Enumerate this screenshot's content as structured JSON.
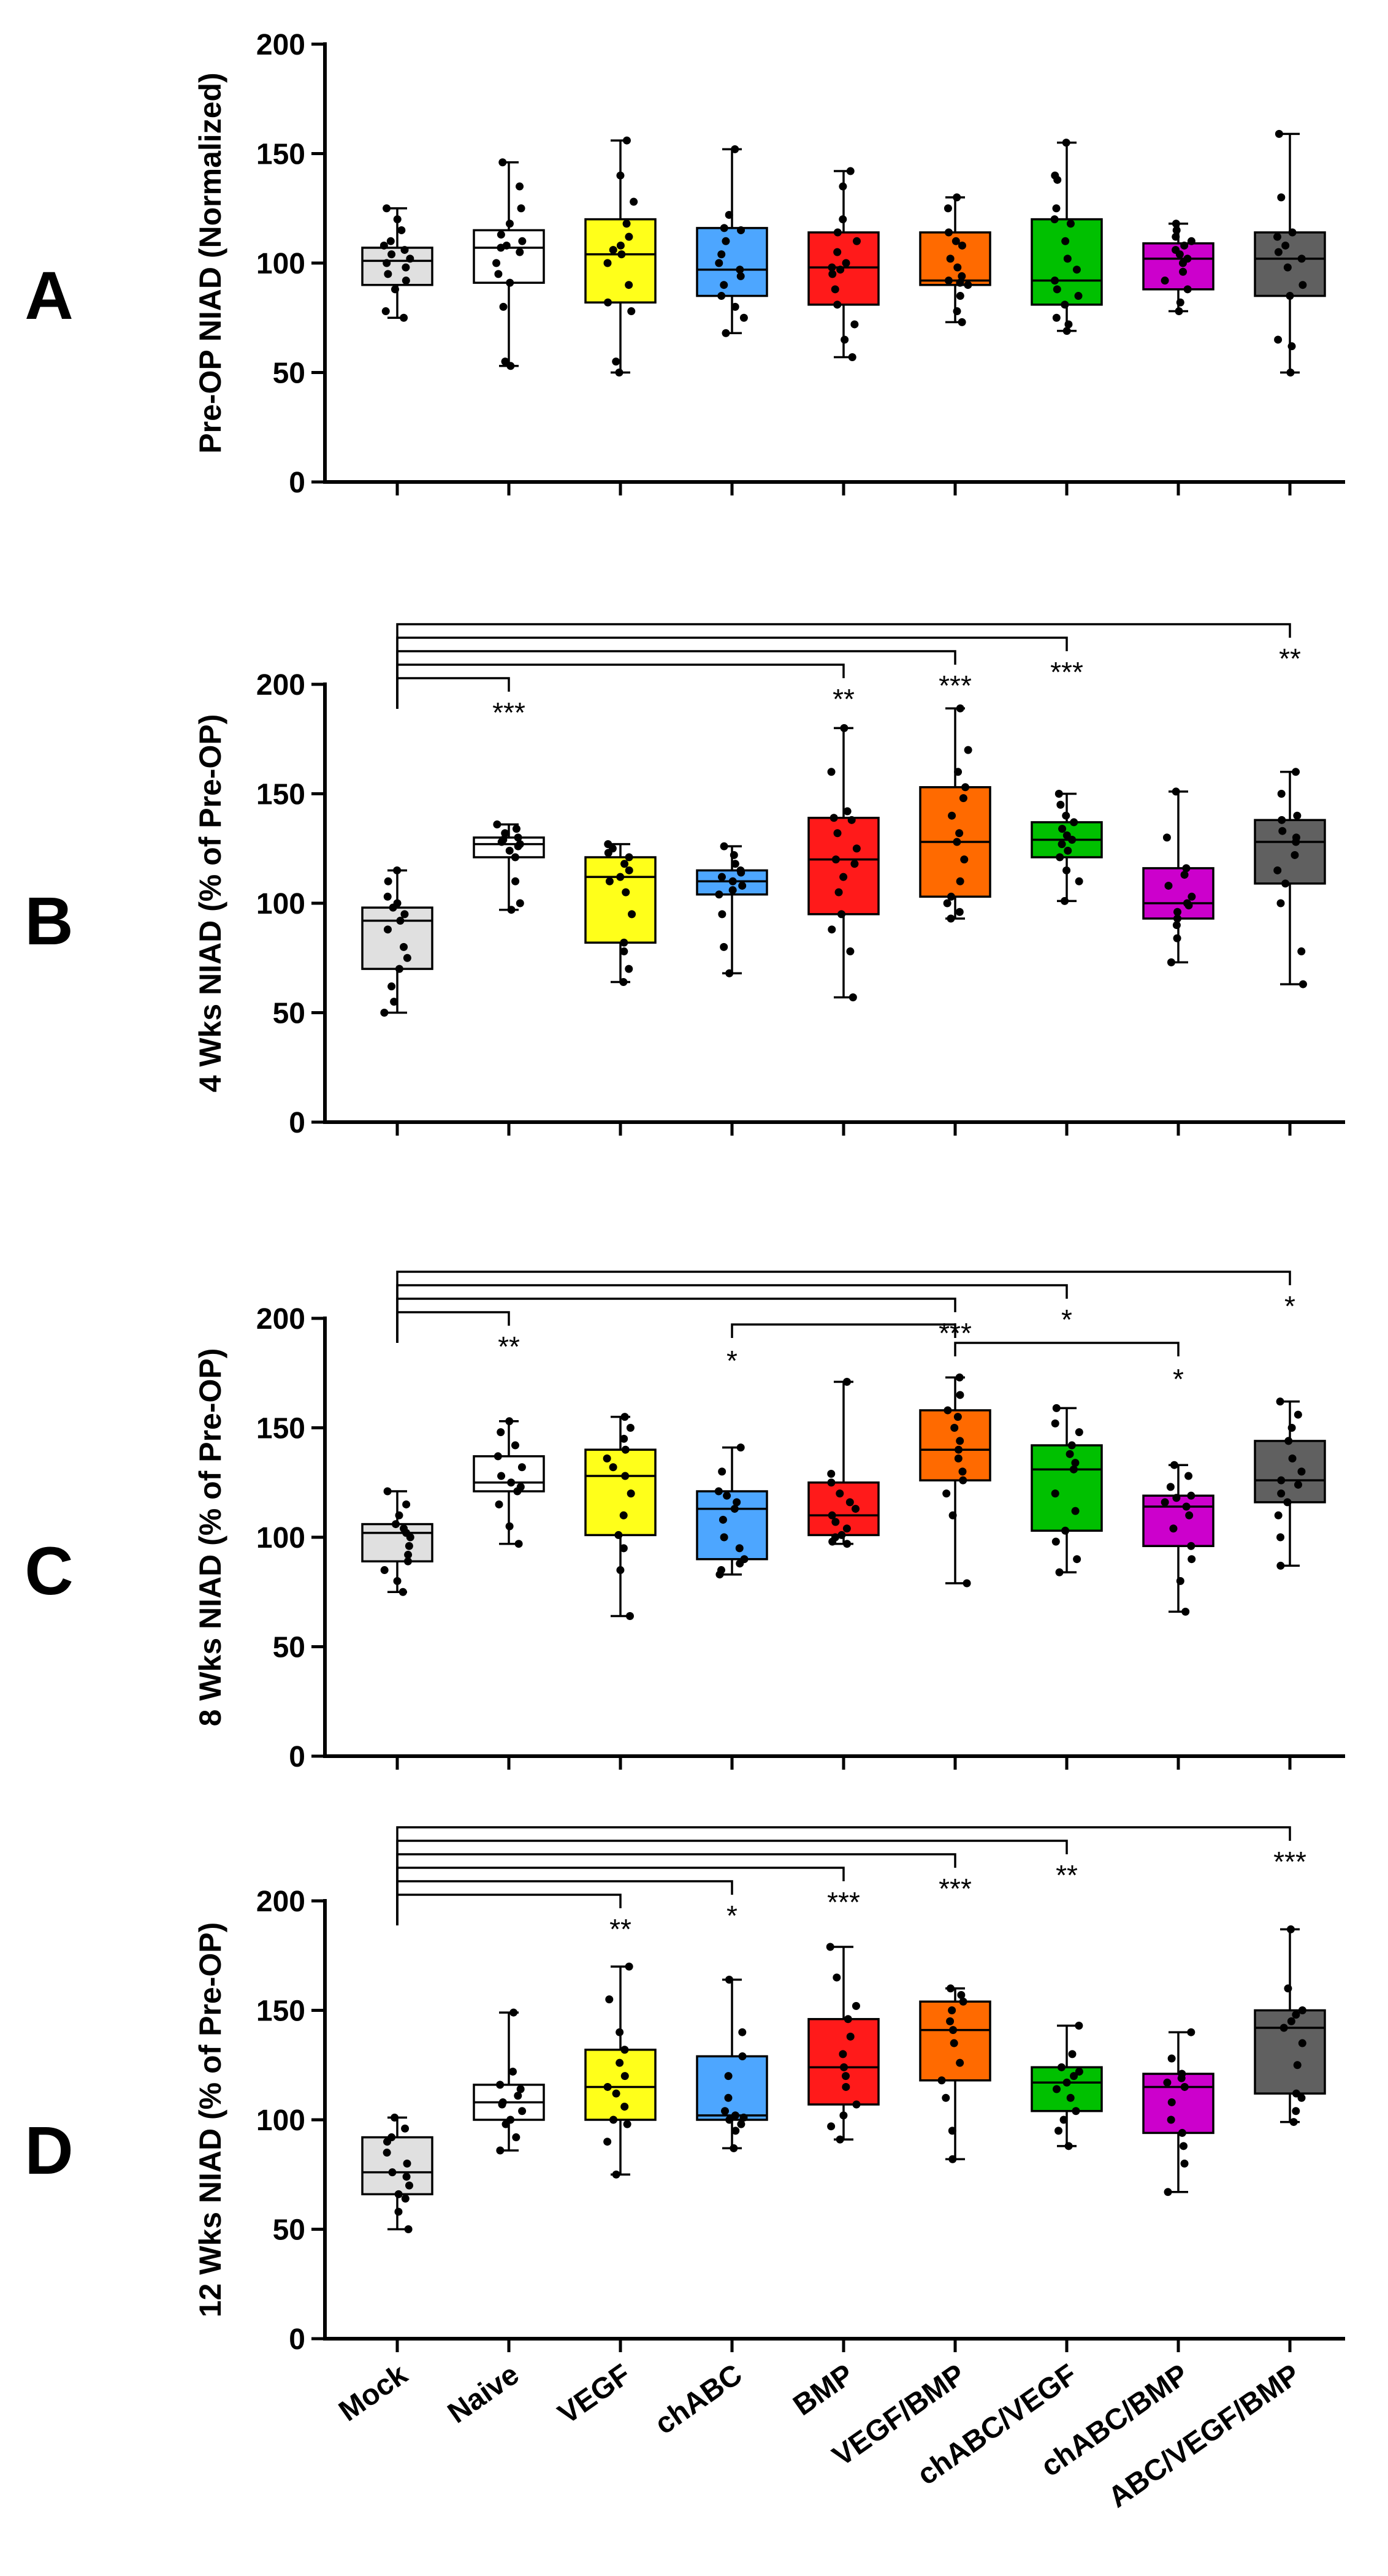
{
  "categories": [
    "Mock",
    "Naive",
    "VEGF",
    "chABC",
    "BMP",
    "VEGF/BMP",
    "chABC/VEGF",
    "chABC/BMP",
    "ABC/VEGF/BMP"
  ],
  "colors": [
    "#e0e0e0",
    "#ffffff",
    "#ffff1a",
    "#4da6ff",
    "#ff1a1a",
    "#ff6a00",
    "#00c000",
    "#cc00cc",
    "#606060"
  ],
  "chart_data": [
    {
      "type": "box",
      "panel": "A",
      "ylabel": "Pre-OP NIAD (Normalized)",
      "ylim": [
        0,
        200
      ],
      "yticks": [
        0,
        50,
        100,
        150,
        200
      ],
      "boxes": [
        {
          "min": 75,
          "q1": 90,
          "median": 101,
          "q3": 107,
          "max": 125,
          "points": [
            75,
            78,
            88,
            92,
            95,
            98,
            100,
            102,
            104,
            106,
            108,
            110,
            115,
            120,
            125
          ]
        },
        {
          "min": 53,
          "q1": 91,
          "median": 107,
          "q3": 115,
          "max": 146,
          "points": [
            53,
            55,
            80,
            91,
            95,
            100,
            105,
            107,
            108,
            110,
            113,
            118,
            125,
            135,
            146
          ]
        },
        {
          "min": 50,
          "q1": 82,
          "median": 104,
          "q3": 120,
          "max": 156,
          "points": [
            50,
            55,
            78,
            82,
            90,
            100,
            104,
            106,
            108,
            112,
            118,
            128,
            140,
            156
          ]
        },
        {
          "min": 68,
          "q1": 85,
          "median": 97,
          "q3": 116,
          "max": 152,
          "points": [
            68,
            75,
            80,
            85,
            90,
            94,
            97,
            100,
            104,
            110,
            115,
            116,
            122,
            152
          ]
        },
        {
          "min": 57,
          "q1": 81,
          "median": 98,
          "q3": 114,
          "max": 142,
          "points": [
            57,
            65,
            72,
            81,
            88,
            95,
            97,
            98,
            100,
            105,
            110,
            114,
            120,
            135,
            142
          ]
        },
        {
          "min": 73,
          "q1": 90,
          "median": 92,
          "q3": 114,
          "max": 130,
          "points": [
            73,
            78,
            85,
            90,
            91,
            92,
            94,
            98,
            102,
            108,
            110,
            114,
            125,
            130
          ]
        },
        {
          "min": 69,
          "q1": 81,
          "median": 92,
          "q3": 120,
          "max": 155,
          "points": [
            69,
            72,
            75,
            81,
            85,
            88,
            92,
            97,
            102,
            110,
            118,
            120,
            125,
            138,
            140,
            155
          ]
        },
        {
          "min": 78,
          "q1": 88,
          "median": 102,
          "q3": 109,
          "max": 118,
          "points": [
            78,
            82,
            88,
            92,
            96,
            100,
            102,
            104,
            106,
            108,
            110,
            112,
            115,
            118
          ]
        },
        {
          "min": 50,
          "q1": 85,
          "median": 102,
          "q3": 114,
          "max": 159,
          "points": [
            50,
            62,
            65,
            85,
            90,
            98,
            102,
            105,
            108,
            112,
            114,
            130,
            159
          ]
        }
      ],
      "brackets": []
    },
    {
      "type": "box",
      "panel": "B",
      "ylabel": "4 Wks NIAD (% of Pre-OP)",
      "ylim": [
        0,
        200
      ],
      "yticks": [
        0,
        50,
        100,
        150,
        200
      ],
      "boxes": [
        {
          "min": 50,
          "q1": 70,
          "median": 92,
          "q3": 98,
          "max": 115,
          "points": [
            50,
            55,
            62,
            70,
            75,
            80,
            88,
            92,
            95,
            98,
            100,
            103,
            110,
            115
          ]
        },
        {
          "min": 97,
          "q1": 121,
          "median": 127,
          "q3": 130,
          "max": 136,
          "points": [
            97,
            100,
            110,
            121,
            124,
            126,
            127,
            128,
            129,
            130,
            132,
            134,
            136
          ]
        },
        {
          "min": 64,
          "q1": 82,
          "median": 112,
          "q3": 121,
          "max": 127,
          "points": [
            64,
            70,
            78,
            82,
            95,
            105,
            110,
            112,
            115,
            118,
            121,
            123,
            125,
            127
          ]
        },
        {
          "min": 68,
          "q1": 104,
          "median": 110,
          "q3": 115,
          "max": 126,
          "points": [
            68,
            80,
            95,
            104,
            106,
            108,
            110,
            112,
            114,
            115,
            118,
            122,
            126
          ]
        },
        {
          "min": 57,
          "q1": 95,
          "median": 120,
          "q3": 139,
          "max": 180,
          "points": [
            57,
            78,
            88,
            95,
            105,
            112,
            118,
            120,
            125,
            132,
            138,
            139,
            142,
            160,
            180
          ]
        },
        {
          "min": 93,
          "q1": 103,
          "median": 128,
          "q3": 153,
          "max": 189,
          "points": [
            93,
            96,
            100,
            103,
            110,
            120,
            128,
            132,
            140,
            148,
            153,
            160,
            170,
            189
          ]
        },
        {
          "min": 101,
          "q1": 121,
          "median": 129,
          "q3": 137,
          "max": 150,
          "points": [
            101,
            110,
            115,
            121,
            124,
            127,
            129,
            131,
            134,
            137,
            140,
            145,
            150
          ]
        },
        {
          "min": 73,
          "q1": 93,
          "median": 100,
          "q3": 116,
          "max": 151,
          "points": [
            73,
            84,
            90,
            93,
            96,
            99,
            100,
            103,
            108,
            113,
            116,
            130,
            151
          ]
        },
        {
          "min": 63,
          "q1": 109,
          "median": 128,
          "q3": 138,
          "max": 160,
          "points": [
            63,
            78,
            100,
            109,
            115,
            122,
            128,
            130,
            133,
            138,
            140,
            150,
            160
          ]
        }
      ],
      "brackets": [
        {
          "from": 0,
          "to": 1,
          "label": "***"
        },
        {
          "from": 0,
          "to": 4,
          "label": "**"
        },
        {
          "from": 0,
          "to": 5,
          "label": "***"
        },
        {
          "from": 0,
          "to": 6,
          "label": "***"
        },
        {
          "from": 0,
          "to": 8,
          "label": "**"
        }
      ]
    },
    {
      "type": "box",
      "panel": "C",
      "ylabel": "8 Wks NIAD (% of Pre-OP)",
      "ylim": [
        0,
        200
      ],
      "yticks": [
        0,
        50,
        100,
        150,
        200
      ],
      "boxes": [
        {
          "min": 75,
          "q1": 89,
          "median": 102,
          "q3": 106,
          "max": 121,
          "points": [
            75,
            80,
            85,
            89,
            92,
            96,
            100,
            102,
            104,
            106,
            110,
            115,
            121
          ]
        },
        {
          "min": 97,
          "q1": 121,
          "median": 125,
          "q3": 137,
          "max": 153,
          "points": [
            97,
            105,
            115,
            121,
            123,
            125,
            128,
            132,
            137,
            142,
            148,
            153
          ]
        },
        {
          "min": 64,
          "q1": 101,
          "median": 128,
          "q3": 140,
          "max": 155,
          "points": [
            64,
            85,
            95,
            101,
            110,
            120,
            128,
            132,
            136,
            140,
            145,
            150,
            155
          ]
        },
        {
          "min": 83,
          "q1": 90,
          "median": 113,
          "q3": 121,
          "max": 141,
          "points": [
            83,
            85,
            88,
            90,
            95,
            100,
            108,
            113,
            116,
            119,
            121,
            130,
            141
          ]
        },
        {
          "min": 97,
          "q1": 101,
          "median": 110,
          "q3": 125,
          "max": 171,
          "points": [
            97,
            98,
            100,
            101,
            104,
            107,
            110,
            113,
            116,
            120,
            125,
            129,
            171
          ]
        },
        {
          "min": 79,
          "q1": 126,
          "median": 140,
          "q3": 158,
          "max": 173,
          "points": [
            79,
            110,
            120,
            126,
            130,
            136,
            140,
            144,
            150,
            155,
            158,
            165,
            173
          ]
        },
        {
          "min": 84,
          "q1": 103,
          "median": 131,
          "q3": 142,
          "max": 159,
          "points": [
            84,
            90,
            98,
            103,
            112,
            120,
            131,
            134,
            138,
            142,
            148,
            152,
            159
          ]
        },
        {
          "min": 66,
          "q1": 96,
          "median": 114,
          "q3": 119,
          "max": 133,
          "points": [
            66,
            80,
            90,
            96,
            104,
            110,
            114,
            116,
            118,
            119,
            123,
            128,
            133
          ]
        },
        {
          "min": 87,
          "q1": 116,
          "median": 126,
          "q3": 144,
          "max": 162,
          "points": [
            87,
            100,
            110,
            116,
            120,
            124,
            126,
            130,
            136,
            144,
            150,
            156,
            162
          ]
        }
      ],
      "brackets": [
        {
          "from": 0,
          "to": 1,
          "label": "**"
        },
        {
          "from": 0,
          "to": 5,
          "label": "***"
        },
        {
          "from": 0,
          "to": 6,
          "label": "*"
        },
        {
          "from": 0,
          "to": 8,
          "label": "*"
        },
        {
          "from": 3,
          "to": 5,
          "label": "*",
          "label_at": "from",
          "level": 1
        },
        {
          "from": 5,
          "to": 7,
          "label": "*",
          "label_at": "to",
          "level": 0
        }
      ]
    },
    {
      "type": "box",
      "panel": "D",
      "ylabel": "12 Wks NIAD (% of Pre-OP)",
      "ylim": [
        0,
        200
      ],
      "yticks": [
        0,
        50,
        100,
        150,
        200
      ],
      "boxes": [
        {
          "min": 50,
          "q1": 66,
          "median": 76,
          "q3": 92,
          "max": 101,
          "points": [
            50,
            58,
            64,
            66,
            70,
            74,
            76,
            80,
            85,
            90,
            92,
            96,
            101
          ]
        },
        {
          "min": 86,
          "q1": 100,
          "median": 108,
          "q3": 116,
          "max": 149,
          "points": [
            86,
            92,
            98,
            100,
            104,
            107,
            108,
            111,
            114,
            116,
            122,
            149
          ]
        },
        {
          "min": 75,
          "q1": 100,
          "median": 115,
          "q3": 132,
          "max": 170,
          "points": [
            75,
            90,
            98,
            100,
            106,
            112,
            115,
            120,
            126,
            132,
            140,
            155,
            170
          ]
        },
        {
          "min": 87,
          "q1": 100,
          "median": 102,
          "q3": 129,
          "max": 164,
          "points": [
            87,
            95,
            98,
            100,
            101,
            102,
            104,
            110,
            120,
            129,
            140,
            164
          ]
        },
        {
          "min": 91,
          "q1": 107,
          "median": 124,
          "q3": 146,
          "max": 179,
          "points": [
            91,
            97,
            102,
            107,
            115,
            120,
            124,
            130,
            138,
            146,
            152,
            165,
            179
          ]
        },
        {
          "min": 82,
          "q1": 118,
          "median": 141,
          "q3": 154,
          "max": 160,
          "points": [
            82,
            95,
            110,
            118,
            126,
            135,
            141,
            145,
            150,
            154,
            157,
            160
          ]
        },
        {
          "min": 88,
          "q1": 104,
          "median": 117,
          "q3": 124,
          "max": 143,
          "points": [
            88,
            95,
            100,
            104,
            110,
            114,
            117,
            120,
            122,
            124,
            130,
            143
          ]
        },
        {
          "min": 67,
          "q1": 94,
          "median": 115,
          "q3": 121,
          "max": 140,
          "points": [
            67,
            80,
            88,
            94,
            100,
            108,
            115,
            117,
            119,
            121,
            128,
            140
          ]
        },
        {
          "min": 99,
          "q1": 112,
          "median": 142,
          "q3": 150,
          "max": 187,
          "points": [
            99,
            104,
            110,
            112,
            125,
            135,
            142,
            145,
            148,
            150,
            160,
            187
          ]
        }
      ],
      "brackets": [
        {
          "from": 0,
          "to": 2,
          "label": "**"
        },
        {
          "from": 0,
          "to": 3,
          "label": "*"
        },
        {
          "from": 0,
          "to": 4,
          "label": "***"
        },
        {
          "from": 0,
          "to": 5,
          "label": "***"
        },
        {
          "from": 0,
          "to": 6,
          "label": "**"
        },
        {
          "from": 0,
          "to": 8,
          "label": "***"
        }
      ]
    }
  ]
}
